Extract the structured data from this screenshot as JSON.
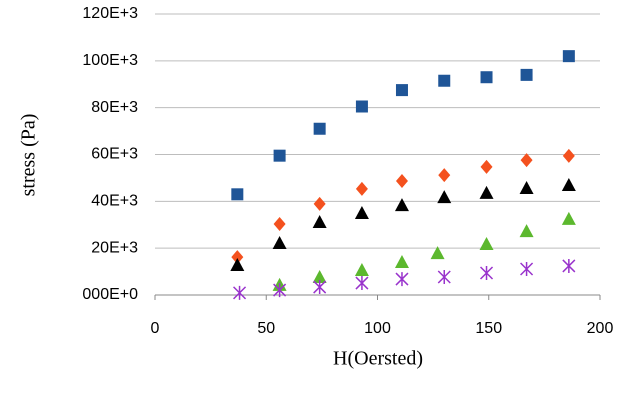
{
  "chart_data": {
    "type": "scatter",
    "x_label": "H(Oersted)",
    "y_label": "stress (Pa)",
    "xlim": [
      0,
      200
    ],
    "xticks": [
      0,
      50,
      100,
      150,
      200
    ],
    "ylim": [
      0,
      120000
    ],
    "yticks": [
      {
        "value": 0,
        "label": "000E+0"
      },
      {
        "value": 20000,
        "label": "20E+3"
      },
      {
        "value": 40000,
        "label": "40E+3"
      },
      {
        "value": 60000,
        "label": "60E+3"
      },
      {
        "value": 80000,
        "label": "80E+3"
      },
      {
        "value": 100000,
        "label": "100E+3"
      },
      {
        "value": 120000,
        "label": "120E+3"
      }
    ],
    "grid": true,
    "series": [
      {
        "marker": "square",
        "color": "#1f5597",
        "x": [
          37,
          56,
          74,
          93,
          111,
          130,
          149,
          167,
          186
        ],
        "values": [
          43000,
          59500,
          71000,
          80500,
          87500,
          91500,
          93000,
          94000,
          102000
        ]
      },
      {
        "marker": "diamond",
        "color": "#f4511e",
        "x": [
          37,
          56,
          74,
          93,
          111,
          130,
          149,
          167,
          186
        ],
        "values": [
          16200,
          30300,
          38900,
          45300,
          48700,
          51200,
          54700,
          57600,
          59400
        ]
      },
      {
        "marker": "triangle",
        "color": "#000000",
        "x": [
          37,
          56,
          74,
          93,
          111,
          130,
          149,
          167,
          186
        ],
        "values": [
          12800,
          22200,
          31200,
          35000,
          38400,
          41800,
          43600,
          45700,
          47000
        ]
      },
      {
        "marker": "triangle",
        "color": "#5cb82e",
        "x": [
          56,
          74,
          93,
          111,
          127,
          149,
          167,
          186
        ],
        "values": [
          4300,
          7700,
          10700,
          14100,
          17900,
          21800,
          27300,
          32500
        ]
      },
      {
        "marker": "star",
        "color": "#9933cc",
        "x": [
          38,
          56,
          74,
          93,
          111,
          130,
          149,
          167,
          186
        ],
        "values": [
          900,
          2100,
          3400,
          5100,
          6800,
          7700,
          9400,
          11100,
          12400
        ]
      }
    ]
  }
}
